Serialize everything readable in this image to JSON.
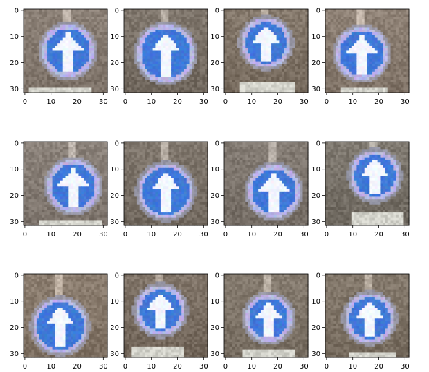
{
  "chart_data": [
    {
      "type": "image",
      "xticks": [
        0,
        10,
        20,
        30
      ],
      "yticks": [
        0,
        10,
        20,
        30
      ],
      "xlim": [
        -0.5,
        31.5
      ],
      "ylim": [
        31.5,
        -0.5
      ],
      "grid": false,
      "sign": {
        "cx": 17,
        "cy": 16,
        "r": 10,
        "kind": "ahead-only"
      },
      "plate": {
        "x0": 2,
        "x1": 25,
        "y0": 30
      },
      "palette": {
        "bg": "#7a6f69",
        "sign": "#3f78d8",
        "ring": "#b9b6e6",
        "arrow": "#f3f6ff"
      }
    },
    {
      "type": "image",
      "xticks": [
        0,
        10,
        20,
        30
      ],
      "yticks": [
        0,
        10,
        20,
        30
      ],
      "xlim": [
        -0.5,
        31.5
      ],
      "ylim": [
        31.5,
        -0.5
      ],
      "grid": false,
      "sign": {
        "cx": 16,
        "cy": 17,
        "r": 11,
        "kind": "ahead-only"
      },
      "plate": null,
      "palette": {
        "bg": "#6f6660",
        "sign": "#3f78d8",
        "ring": "#b9b6e6",
        "arrow": "#f3f6ff"
      }
    },
    {
      "type": "image",
      "xticks": [
        0,
        10,
        20,
        30
      ],
      "yticks": [
        0,
        10,
        20,
        30
      ],
      "xlim": [
        -0.5,
        31.5
      ],
      "ylim": [
        31.5,
        -0.5
      ],
      "grid": false,
      "sign": {
        "cx": 16,
        "cy": 13,
        "r": 9.5,
        "kind": "ahead-only"
      },
      "plate": {
        "x0": 6,
        "x1": 26,
        "y0": 28
      },
      "palette": {
        "bg": "#74685f",
        "sign": "#3f78d8",
        "ring": "#b9b6e6",
        "arrow": "#f3f6ff"
      }
    },
    {
      "type": "image",
      "xticks": [
        0,
        10,
        20,
        30
      ],
      "yticks": [
        0,
        10,
        20,
        30
      ],
      "xlim": [
        -0.5,
        31.5
      ],
      "ylim": [
        31.5,
        -0.5
      ],
      "grid": false,
      "sign": {
        "cx": 14,
        "cy": 17,
        "r": 10,
        "kind": "ahead-only"
      },
      "plate": {
        "x0": 6,
        "x1": 23,
        "y0": 30
      },
      "palette": {
        "bg": "#7d7068",
        "sign": "#3f78d8",
        "ring": "#b9b6e6",
        "arrow": "#f3f6ff"
      }
    },
    {
      "type": "image",
      "xticks": [
        0,
        10,
        20,
        30
      ],
      "yticks": [
        0,
        10,
        20,
        30
      ],
      "xlim": [
        -0.5,
        31.5
      ],
      "ylim": [
        31.5,
        -0.5
      ],
      "grid": false,
      "sign": {
        "cx": 19,
        "cy": 17,
        "r": 10,
        "kind": "ahead-only"
      },
      "plate": {
        "x0": 6,
        "x1": 29,
        "y0": 30
      },
      "palette": {
        "bg": "#7a716d",
        "sign": "#3f78d8",
        "ring": "#b9b6e6",
        "arrow": "#f3f6ff"
      }
    },
    {
      "type": "image",
      "xticks": [
        0,
        10,
        20,
        30
      ],
      "yticks": [
        0,
        10,
        20,
        30
      ],
      "xlim": [
        -0.5,
        31.5
      ],
      "ylim": [
        31.5,
        -0.5
      ],
      "grid": false,
      "sign": {
        "cx": 16,
        "cy": 19,
        "r": 10.5,
        "kind": "ahead-only"
      },
      "plate": null,
      "palette": {
        "bg": "#6f6660",
        "sign": "#3f78d8",
        "ring": "#b9b6e6",
        "arrow": "#f3f6ff"
      }
    },
    {
      "type": "image",
      "xticks": [
        0,
        10,
        20,
        30
      ],
      "yticks": [
        0,
        10,
        20,
        30
      ],
      "xlim": [
        -0.5,
        31.5
      ],
      "ylim": [
        31.5,
        -0.5
      ],
      "grid": false,
      "sign": {
        "cx": 19,
        "cy": 19,
        "r": 10,
        "kind": "ahead-only"
      },
      "plate": null,
      "palette": {
        "bg": "#726a66",
        "sign": "#3f78d8",
        "ring": "#b9b6e6",
        "arrow": "#f3f6ff"
      }
    },
    {
      "type": "image",
      "xticks": [
        0,
        10,
        20,
        30
      ],
      "yticks": [
        0,
        10,
        20,
        30
      ],
      "xlim": [
        -0.5,
        31.5
      ],
      "ylim": [
        31.5,
        -0.5
      ],
      "grid": false,
      "sign": {
        "cx": 19,
        "cy": 13,
        "r": 9.5,
        "kind": "ahead-only"
      },
      "plate": {
        "x0": 10,
        "x1": 29,
        "y0": 27
      },
      "palette": {
        "bg": "#6d6762",
        "sign": "#3f78d8",
        "ring": "#b9b6e6",
        "arrow": "#f3f6ff"
      }
    },
    {
      "type": "image",
      "xticks": [
        0,
        10,
        20,
        30
      ],
      "yticks": [
        0,
        10,
        20,
        30
      ],
      "xlim": [
        -0.5,
        31.5
      ],
      "ylim": [
        31.5,
        -0.5
      ],
      "grid": false,
      "sign": {
        "cx": 14,
        "cy": 20,
        "r": 10.5,
        "kind": "ahead-only"
      },
      "plate": null,
      "palette": {
        "bg": "#7b6d63",
        "sign": "#3f78d8",
        "ring": "#b9b6e6",
        "arrow": "#f3f6ff"
      }
    },
    {
      "type": "image",
      "xticks": [
        0,
        10,
        20,
        30
      ],
      "yticks": [
        0,
        10,
        20,
        30
      ],
      "xlim": [
        -0.5,
        31.5
      ],
      "ylim": [
        31.5,
        -0.5
      ],
      "grid": false,
      "sign": {
        "cx": 14,
        "cy": 14,
        "r": 9.5,
        "kind": "ahead-only"
      },
      "plate": {
        "x0": 3,
        "x1": 22,
        "y0": 28
      },
      "palette": {
        "bg": "#6f635b",
        "sign": "#3f78d8",
        "ring": "#b9b6e6",
        "arrow": "#f3f6ff"
      }
    },
    {
      "type": "image",
      "xticks": [
        0,
        10,
        20,
        30
      ],
      "yticks": [
        0,
        10,
        20,
        30
      ],
      "xlim": [
        -0.5,
        31.5
      ],
      "ylim": [
        31.5,
        -0.5
      ],
      "grid": false,
      "sign": {
        "cx": 17,
        "cy": 17,
        "r": 9,
        "kind": "ahead-only"
      },
      "plate": {
        "x0": 7,
        "x1": 26,
        "y0": 29
      },
      "palette": {
        "bg": "#746a62",
        "sign": "#3f78d8",
        "ring": "#b9b6e6",
        "arrow": "#f3f6ff"
      }
    },
    {
      "type": "image",
      "xticks": [
        0,
        10,
        20,
        30
      ],
      "yticks": [
        0,
        10,
        20,
        30
      ],
      "xlim": [
        -0.5,
        31.5
      ],
      "ylim": [
        31.5,
        -0.5
      ],
      "grid": false,
      "sign": {
        "cx": 17,
        "cy": 17,
        "r": 9.5,
        "kind": "ahead-only"
      },
      "plate": {
        "x0": 9,
        "x1": 26,
        "y0": 30
      },
      "palette": {
        "bg": "#73685f",
        "sign": "#3f78d8",
        "ring": "#b9b6e6",
        "arrow": "#f3f6ff"
      }
    }
  ]
}
